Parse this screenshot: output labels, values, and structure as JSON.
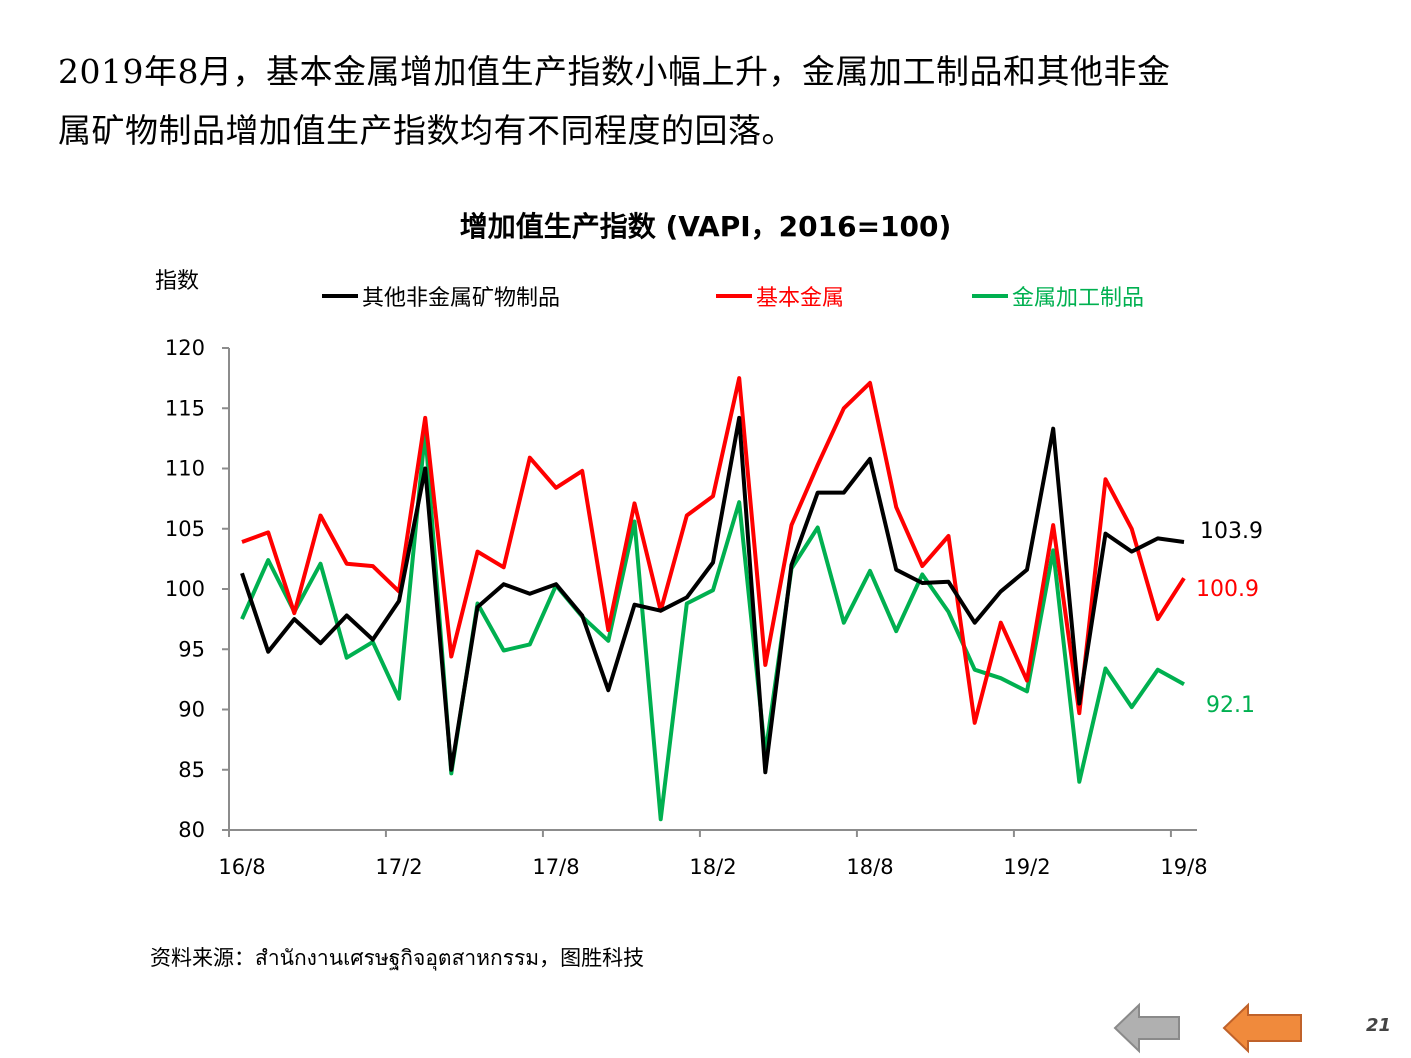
{
  "headline": {
    "line1": "2019年8月，基本金属增加值生产指数小幅上升，金属加工制品和其他非金",
    "line2": "属矿物制品增加值生产指数均有不同程度的回落。"
  },
  "source": "资料来源：สำนักงานเศรษฐกิจอุตสาหกรรม，图胜科技",
  "page_number": "21",
  "navigation": {
    "prev_icon": "left-arrow-icon-gray",
    "next_icon": "left-arrow-icon-orange",
    "prev_color": "#a6a6a6",
    "next_color": "#f08a3c"
  },
  "chart_data": {
    "type": "line",
    "title": "增加值生产指数 (VAPI，2016=100)",
    "ylabel": "指数",
    "ylim": [
      80,
      120
    ],
    "yticks": [
      80,
      85,
      90,
      95,
      100,
      105,
      110,
      115,
      120
    ],
    "xtick_labels": [
      "16/8",
      "17/2",
      "17/8",
      "18/2",
      "18/8",
      "19/2",
      "19/8"
    ],
    "x": [
      "16/8",
      "16/9",
      "16/10",
      "16/11",
      "16/12",
      "17/1",
      "17/2",
      "17/3",
      "17/4",
      "17/5",
      "17/6",
      "17/7",
      "17/8",
      "17/9",
      "17/10",
      "17/11",
      "17/12",
      "18/1",
      "18/2",
      "18/3",
      "18/4",
      "18/5",
      "18/6",
      "18/7",
      "18/8",
      "18/9",
      "18/10",
      "18/11",
      "18/12",
      "19/1",
      "19/2",
      "19/3",
      "19/4",
      "19/5",
      "19/6",
      "19/7",
      "19/8"
    ],
    "legend_position": "top",
    "series": [
      {
        "name": "其他非金属矿物制品",
        "color": "#000000",
        "end_label": "103.9",
        "values": [
          101.3,
          94.8,
          97.5,
          95.5,
          97.8,
          95.8,
          99.0,
          110.0,
          85.0,
          98.5,
          100.4,
          99.6,
          100.4,
          97.8,
          91.6,
          98.7,
          98.2,
          99.3,
          102.2,
          114.2,
          84.8,
          102.0,
          108.0,
          108.0,
          110.8,
          101.6,
          100.5,
          100.6,
          97.2,
          99.8,
          101.6,
          113.3,
          90.5,
          104.6,
          103.1,
          104.2,
          103.9
        ]
      },
      {
        "name": "基本金属",
        "color": "#ff0000",
        "end_label": "100.9",
        "values": [
          103.9,
          104.7,
          98.0,
          106.1,
          102.1,
          101.9,
          99.8,
          114.2,
          94.4,
          103.1,
          101.8,
          110.9,
          108.4,
          109.8,
          96.6,
          107.1,
          98.2,
          106.1,
          107.7,
          117.5,
          93.7,
          105.3,
          110.3,
          115.0,
          117.1,
          106.8,
          101.9,
          104.4,
          88.9,
          97.2,
          92.4,
          105.3,
          89.7,
          109.1,
          105.0,
          97.5,
          100.9
        ]
      },
      {
        "name": "金属加工制品",
        "color": "#00b050",
        "end_label": "92.1",
        "values": [
          97.5,
          102.4,
          98.1,
          102.1,
          94.3,
          95.6,
          90.9,
          113.1,
          84.7,
          98.8,
          94.9,
          95.4,
          100.3,
          97.7,
          95.7,
          105.6,
          80.9,
          98.8,
          99.9,
          107.2,
          86.3,
          101.7,
          105.1,
          97.2,
          101.5,
          96.5,
          101.2,
          98.1,
          93.3,
          92.6,
          91.5,
          103.2,
          84.0,
          93.4,
          90.2,
          93.3,
          92.1
        ]
      }
    ]
  }
}
